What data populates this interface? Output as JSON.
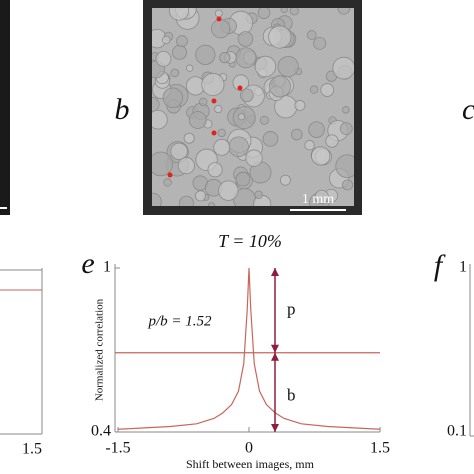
{
  "panels": {
    "b": {
      "label": "b",
      "scale_bar": "1 mm"
    },
    "c": {
      "label": "c"
    },
    "d": {
      "xtick": 1.5
    },
    "f": {
      "label": "f",
      "yticks": [
        1,
        0.1
      ]
    }
  },
  "chart_data": {
    "type": "line",
    "panel_label": "e",
    "title": "T = 10%",
    "x_label": "Shift between images, mm",
    "y_label": "Normalized correlation",
    "annotation": "p/b = 1.52",
    "arrow_labels": [
      "p",
      "b"
    ],
    "color": "#c9665c",
    "arrow_color": "#8e1d3f",
    "x": [
      -1.5,
      -1.2,
      -0.9,
      -0.6,
      -0.4,
      -0.3,
      -0.2,
      -0.12,
      -0.06,
      -0.02,
      0,
      0.02,
      0.06,
      0.12,
      0.2,
      0.3,
      0.4,
      0.6,
      0.9,
      1.2,
      1.5
    ],
    "values": [
      0.41,
      0.415,
      0.42,
      0.43,
      0.45,
      0.47,
      0.5,
      0.55,
      0.65,
      0.85,
      1,
      0.85,
      0.65,
      0.55,
      0.5,
      0.47,
      0.45,
      0.43,
      0.42,
      0.415,
      0.41
    ],
    "hline": 0.69,
    "xlim": [
      -1.5,
      1.5
    ],
    "ylim": [
      0.4,
      1
    ],
    "xticks": [
      -1.5,
      0,
      1.5
    ],
    "yticks": [
      0.4,
      1
    ]
  }
}
